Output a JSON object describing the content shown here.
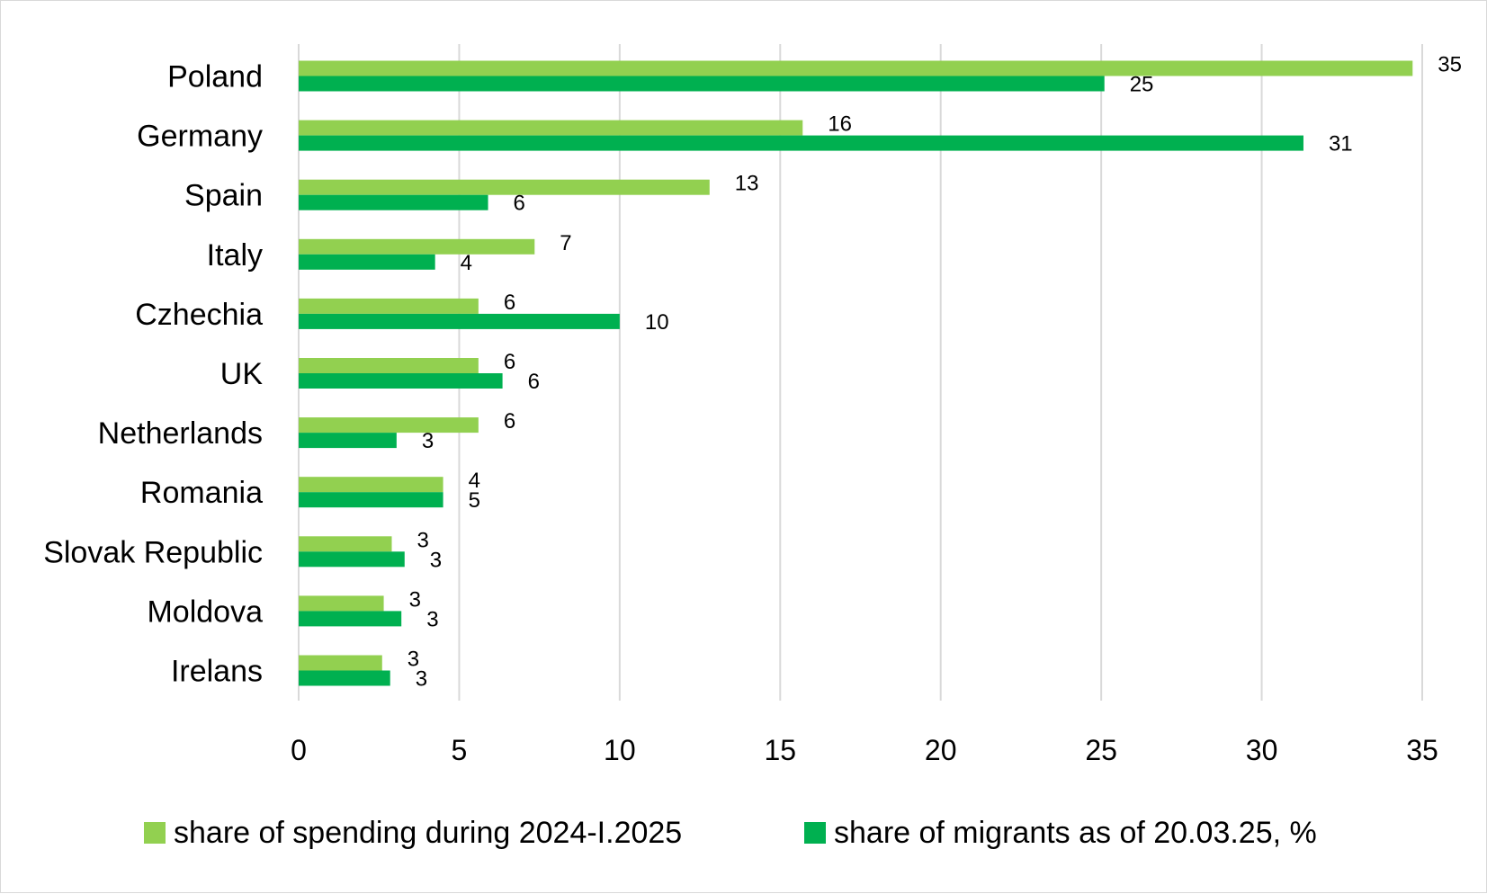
{
  "chart_data": {
    "type": "bar",
    "orientation": "horizontal",
    "categories": [
      "Poland",
      "Germany",
      "Spain",
      "Italy",
      "Czhechia",
      "UK",
      "Netherlands",
      "Romania",
      "Slovak Republic",
      "Moldova",
      "Irelans"
    ],
    "series": [
      {
        "name": "share of spending during 2024-I.2025",
        "color": "#92d050",
        "values": [
          34.7,
          15.7,
          12.8,
          7.35,
          5.6,
          5.6,
          5.6,
          4.5,
          2.9,
          2.65,
          2.6
        ],
        "labels": [
          "35",
          "16",
          "13",
          "7",
          "6",
          "6",
          "6",
          "4",
          "3",
          "3",
          "3"
        ]
      },
      {
        "name": "share of migrants as of 20.03.25, %",
        "color": "#00b050",
        "values": [
          25.1,
          31.3,
          5.9,
          4.25,
          10.0,
          6.35,
          3.05,
          4.5,
          3.3,
          3.2,
          2.85
        ],
        "labels": [
          "25",
          "31",
          "6",
          "4",
          "10",
          "6",
          "3",
          "5",
          "3",
          "3",
          "3"
        ]
      }
    ],
    "xlim": [
      0,
      35
    ],
    "xticks": [
      "0",
      "5",
      "10",
      "15",
      "20",
      "25",
      "30",
      "35"
    ],
    "grid": true,
    "legend_position": "bottom"
  }
}
